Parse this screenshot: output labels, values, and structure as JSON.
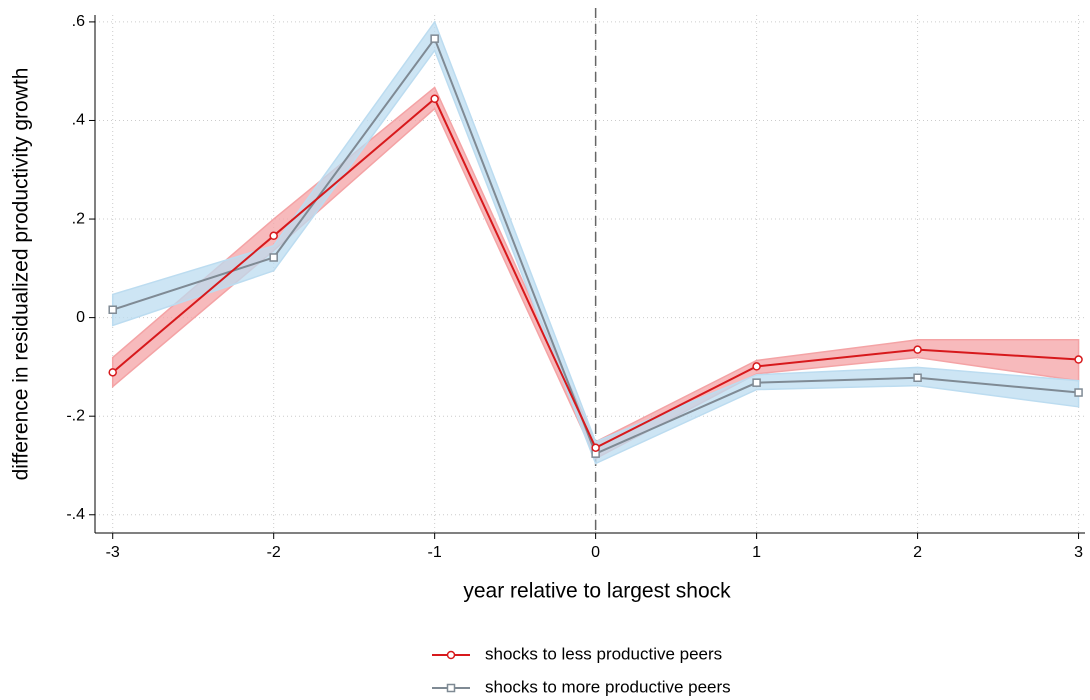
{
  "chart_data": {
    "type": "line",
    "xlabel": "year relative to largest shock",
    "ylabel": "difference in residualized productivity growth",
    "x": [
      -3,
      -2,
      -1,
      0,
      1,
      2,
      3
    ],
    "xlim": [
      -3.11,
      3.04
    ],
    "xticks": [
      -3,
      -2,
      -1,
      0,
      1,
      2,
      3
    ],
    "ylim": [
      -0.437,
      0.614
    ],
    "yticks": [
      {
        "value": -0.4,
        "label": "-.4"
      },
      {
        "value": -0.2,
        "label": "-.2"
      },
      0,
      {
        "value": 0.2,
        "label": ".2"
      },
      {
        "value": 0.4,
        "label": ".4"
      },
      {
        "value": 0.6,
        "label": ".6"
      }
    ],
    "grid": true,
    "vline": 0,
    "legend": "bottom",
    "series": [
      {
        "name": "shocks to less productive peers",
        "color": "#d7191c",
        "band_color": "#f4a3a5",
        "marker": "circle",
        "values": [
          -0.111,
          0.166,
          0.444,
          -0.264,
          -0.099,
          -0.065,
          -0.085
        ],
        "lower": [
          -0.14,
          0.136,
          0.424,
          -0.286,
          -0.114,
          -0.081,
          -0.128
        ],
        "upper": [
          -0.081,
          0.2,
          0.467,
          -0.252,
          -0.087,
          -0.045,
          -0.045
        ]
      },
      {
        "name": "shocks to more productive peers",
        "color": "#7f8a94",
        "band_color": "#bcdcf0",
        "marker": "square",
        "values": [
          0.016,
          0.122,
          0.566,
          -0.276,
          -0.132,
          -0.122,
          -0.152
        ],
        "lower": [
          -0.016,
          0.095,
          0.542,
          -0.296,
          -0.146,
          -0.138,
          -0.181
        ],
        "upper": [
          0.047,
          0.146,
          0.6,
          -0.252,
          -0.116,
          -0.101,
          -0.128
        ]
      }
    ]
  }
}
